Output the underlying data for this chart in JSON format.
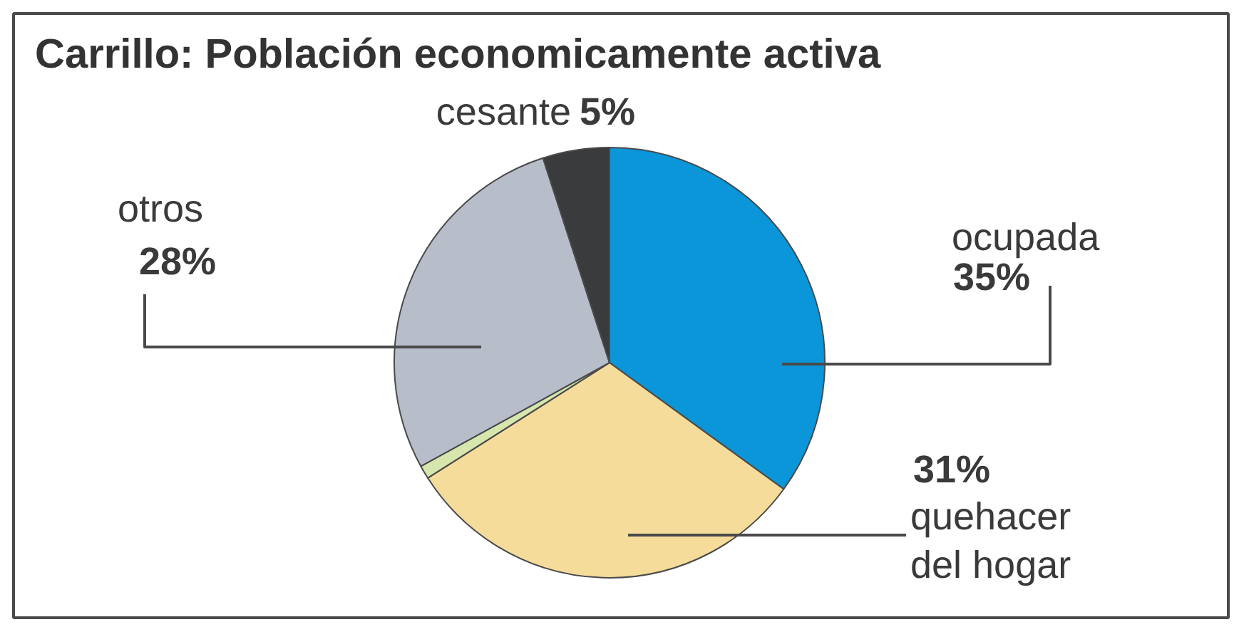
{
  "chart_data": {
    "type": "pie",
    "title": "Carrillo: Población economicamente activa",
    "categories": [
      "ocupada",
      "quehacer del hogar",
      null,
      "otros",
      "cesante"
    ],
    "values": [
      35,
      31,
      1,
      28,
      5
    ],
    "colors": [
      "#0a96d8",
      "#f5dc9b",
      "#d6e6ad",
      "#b7bdc9",
      "#3a3b3d"
    ],
    "value_labels": [
      "35%",
      "31%",
      null,
      "28%",
      "5%"
    ]
  }
}
